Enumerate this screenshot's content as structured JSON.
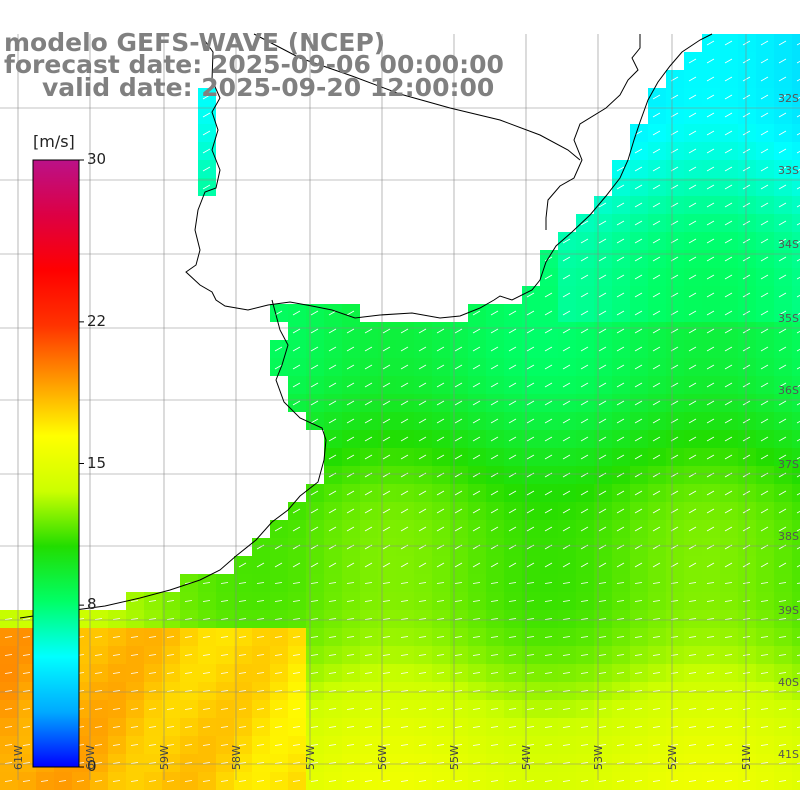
{
  "title": {
    "line1": "modelo GEFS-WAVE (NCEP)",
    "line2": "forecast date: 2025-09-06 00:00:00",
    "line3": "valid date: 2025-09-20 12:00:00"
  },
  "colorbar": {
    "unit": "[m/s]",
    "min": 0,
    "max": 30,
    "ticks": [
      {
        "label": "30",
        "value": 30
      },
      {
        "label": "22",
        "value": 22
      },
      {
        "label": "15",
        "value": 15
      },
      {
        "label": "8",
        "value": 8
      },
      {
        "label": "0",
        "value": 0
      }
    ],
    "stops": [
      "#0000ff",
      "#00aaff",
      "#00ffff",
      "#00ff66",
      "#22dd00",
      "#ccff00",
      "#ffff00",
      "#ff9900",
      "#ff3300",
      "#ff0000",
      "#dd0044",
      "#bb1188"
    ]
  },
  "map": {
    "lon_range": [
      -61,
      -50
    ],
    "lat_range": [
      -42,
      -31
    ],
    "lon_labels": [
      "61W",
      "60W",
      "59W",
      "58W",
      "57W",
      "56W",
      "55W",
      "54W",
      "53W",
      "52W",
      "51W"
    ],
    "lat_labels": [
      "32S",
      "33S",
      "34S",
      "35S",
      "36S",
      "37S",
      "38S",
      "39S",
      "40S",
      "41S"
    ],
    "grid_color": "#888888",
    "coast_color": "#000000",
    "arrow_color": "#ffffff"
  }
}
